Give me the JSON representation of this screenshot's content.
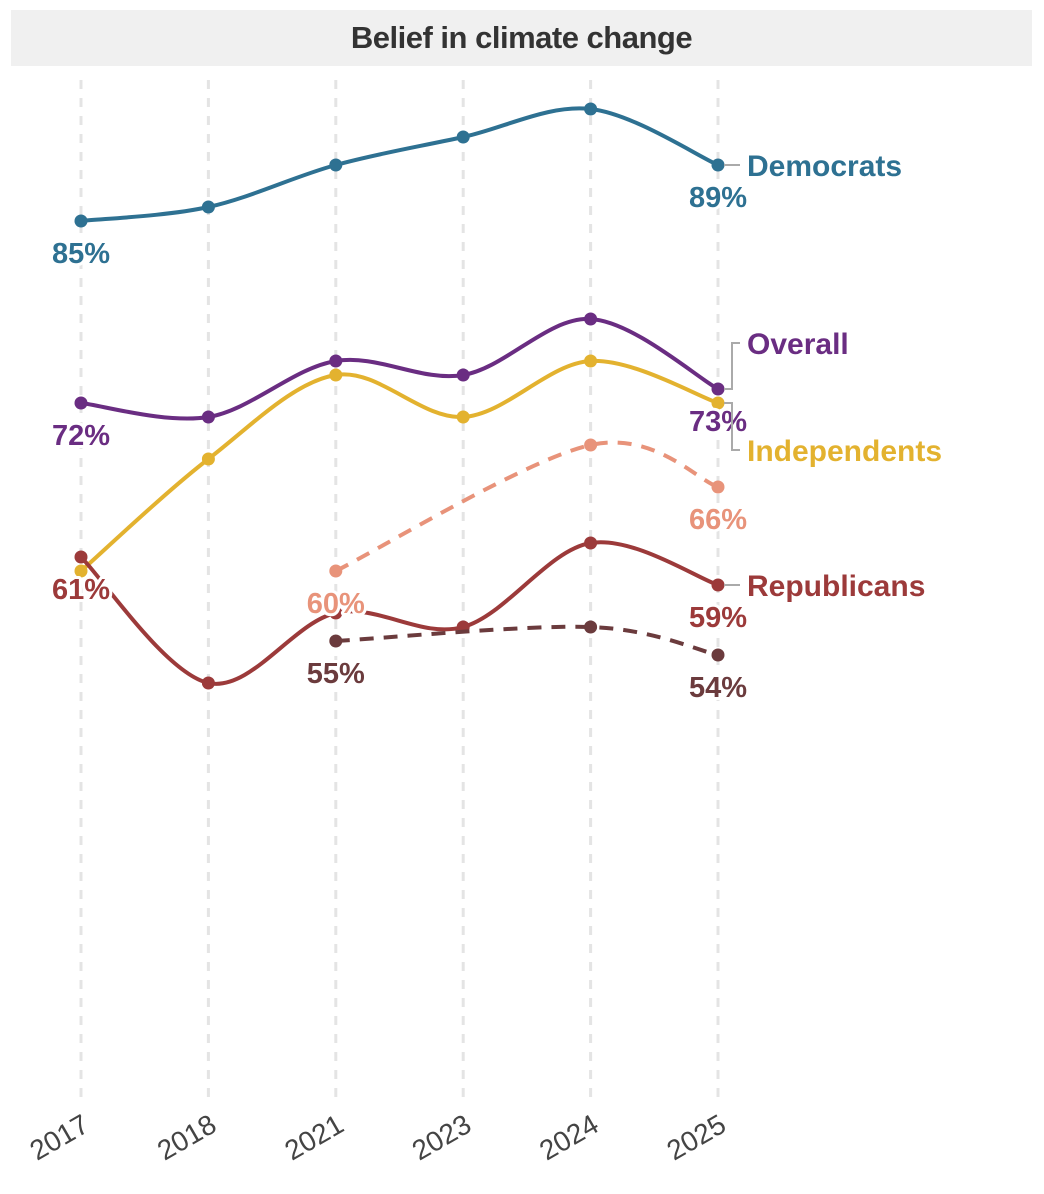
{
  "chart_data": {
    "type": "line",
    "title": "Belief in climate change",
    "xlabel": "",
    "ylabel": "",
    "categories": [
      "2017",
      "2018",
      "2021",
      "2023",
      "2024",
      "2025"
    ],
    "y_unit": "%",
    "grid": "vertical dashed",
    "legend": "direct labels at right",
    "series": [
      {
        "name": "Democrats",
        "color": "#2e7192",
        "dashed": false,
        "values": [
          85,
          86,
          89,
          91,
          93,
          89
        ],
        "labels": {
          "0": "85%",
          "5": "89%"
        }
      },
      {
        "name": "Overall",
        "color": "#6a2d82",
        "dashed": false,
        "values": [
          72,
          71,
          75,
          74,
          78,
          73
        ],
        "labels": {
          "0": "72%",
          "5": "73%"
        }
      },
      {
        "name": "Independents",
        "color": "#e3b22f",
        "dashed": false,
        "values": [
          60,
          68,
          74,
          71,
          75,
          72
        ],
        "labels": {}
      },
      {
        "name": "",
        "color": "#e8937a",
        "dashed": true,
        "values": [
          null,
          null,
          60,
          null,
          69,
          66
        ],
        "labels": {
          "2": "60%",
          "5": "66%"
        }
      },
      {
        "name": "Republicans",
        "color": "#9c3a3a",
        "dashed": false,
        "values": [
          61,
          52,
          57,
          56,
          62,
          59
        ],
        "labels": {
          "0": "61%",
          "5": "59%"
        }
      },
      {
        "name": "",
        "color": "#6b3b3d",
        "dashed": true,
        "values": [
          null,
          null,
          55,
          null,
          56,
          54
        ],
        "labels": {
          "2": "55%",
          "5": "54%"
        }
      }
    ]
  }
}
